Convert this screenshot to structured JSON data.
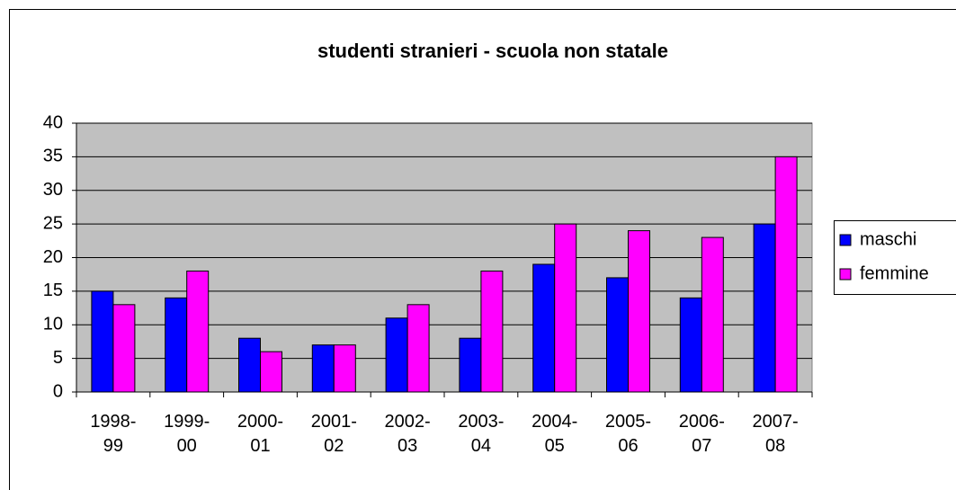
{
  "chart_data": {
    "type": "bar",
    "title": "studenti stranieri - scuola non statale",
    "categories": [
      "1998-99",
      "1999-00",
      "2000-01",
      "2001-02",
      "2002-03",
      "2003-04",
      "2004-05",
      "2005-06",
      "2006-07",
      "2007-08"
    ],
    "series": [
      {
        "name": "maschi",
        "color": "#0000ff",
        "values": [
          15,
          14,
          8,
          7,
          11,
          8,
          19,
          17,
          14,
          25
        ]
      },
      {
        "name": "femmine",
        "color": "#ff00ff",
        "values": [
          13,
          18,
          6,
          7,
          13,
          18,
          25,
          24,
          23,
          35
        ]
      }
    ],
    "ylim": [
      0,
      40
    ],
    "yticks": [
      0,
      5,
      10,
      15,
      20,
      25,
      30,
      35,
      40
    ],
    "grid": true,
    "legend": "right"
  }
}
